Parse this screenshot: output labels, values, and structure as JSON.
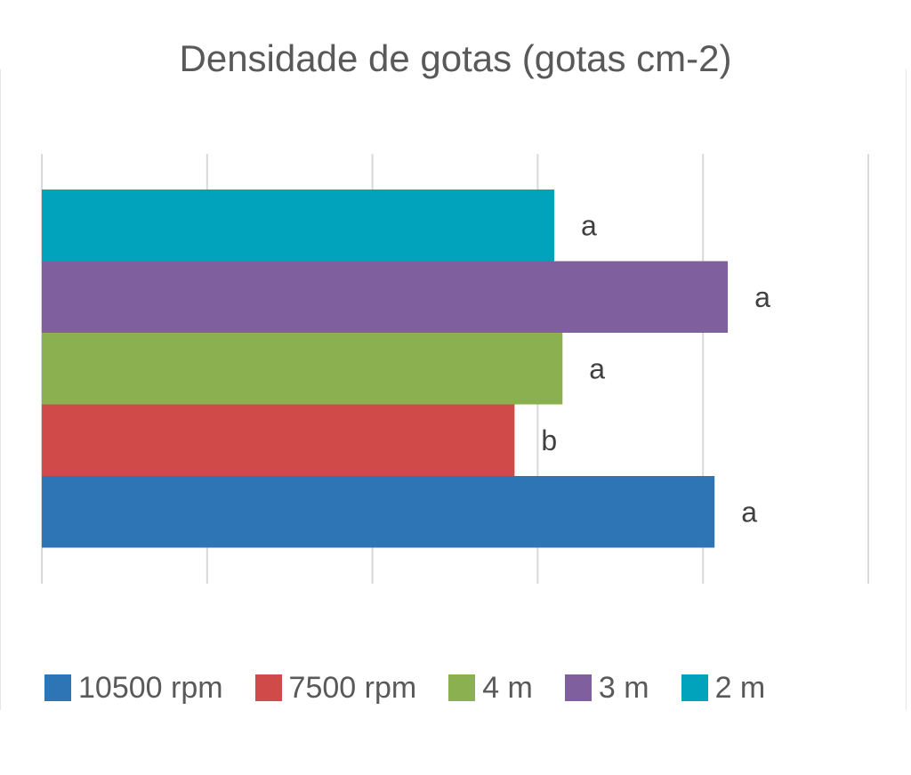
{
  "chart_data": {
    "type": "bar",
    "orientation": "horizontal",
    "title": "Densidade de gotas (gotas cm-2)",
    "xlim": [
      0,
      50
    ],
    "grid": true,
    "legend_position": "bottom",
    "series": [
      {
        "name": "10500 rpm",
        "value": 40.7,
        "label": "a",
        "color": "#2e75b6"
      },
      {
        "name": "7500 rpm",
        "value": 28.6,
        "label": "b",
        "color": "#cf4a48"
      },
      {
        "name": "4 m",
        "value": 31.5,
        "label": "a",
        "color": "#8bb04f"
      },
      {
        "name": "3 m",
        "value": 41.5,
        "label": "a",
        "color": "#7f5f9d"
      },
      {
        "name": "2 m",
        "value": 31.0,
        "label": "a",
        "color": "#00a2bc"
      }
    ]
  }
}
